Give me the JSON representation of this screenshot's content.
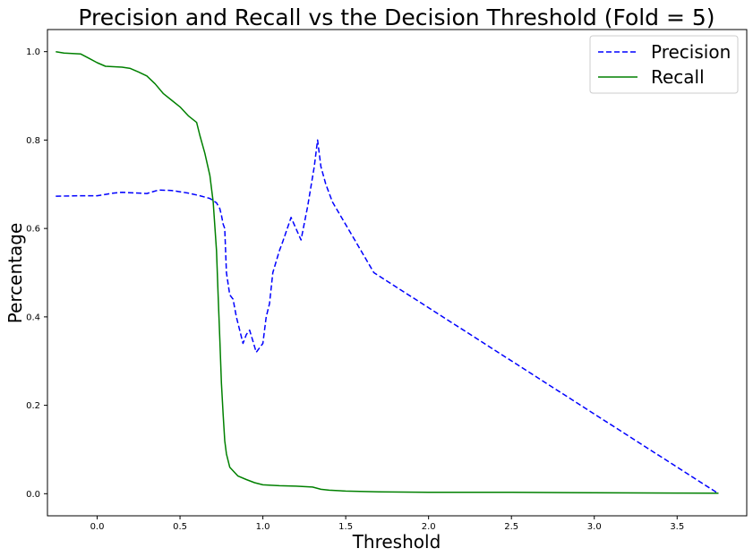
{
  "chart_data": {
    "type": "line",
    "title": "Precision and Recall vs the Decision Threshold (Fold = 5)",
    "xlabel": "Threshold",
    "ylabel": "Percentage",
    "xlim": [
      -0.3,
      3.92
    ],
    "ylim": [
      -0.05,
      1.05
    ],
    "xticks": [
      0.0,
      0.5,
      1.0,
      1.5,
      2.0,
      2.5,
      3.0,
      3.5
    ],
    "xtick_labels": [
      "0.0",
      "0.5",
      "1.0",
      "1.5",
      "2.0",
      "2.5",
      "3.0",
      "3.5"
    ],
    "yticks": [
      0.0,
      0.2,
      0.4,
      0.6,
      0.8,
      1.0
    ],
    "ytick_labels": [
      "0.0",
      "0.2",
      "0.4",
      "0.6",
      "0.8",
      "1.0"
    ],
    "grid": false,
    "legend_position": "top-right",
    "series": [
      {
        "name": "Precision",
        "color": "#0000ff",
        "style": "dashed",
        "x": [
          -0.25,
          -0.1,
          0.0,
          0.1,
          0.15,
          0.2,
          0.3,
          0.37,
          0.45,
          0.55,
          0.62,
          0.68,
          0.72,
          0.74,
          0.75,
          0.76,
          0.77,
          0.78,
          0.8,
          0.82,
          0.84,
          0.86,
          0.88,
          0.9,
          0.92,
          0.94,
          0.96,
          0.98,
          1.0,
          1.02,
          1.04,
          1.06,
          1.1,
          1.12,
          1.17,
          1.23,
          1.27,
          1.31,
          1.33,
          1.35,
          1.38,
          1.42,
          1.67,
          3.75
        ],
        "y": [
          0.673,
          0.674,
          0.674,
          0.68,
          0.682,
          0.681,
          0.679,
          0.687,
          0.686,
          0.68,
          0.674,
          0.668,
          0.658,
          0.645,
          0.63,
          0.61,
          0.6,
          0.5,
          0.45,
          0.44,
          0.4,
          0.37,
          0.34,
          0.36,
          0.37,
          0.345,
          0.32,
          0.33,
          0.34,
          0.4,
          0.43,
          0.5,
          0.55,
          0.57,
          0.625,
          0.574,
          0.65,
          0.74,
          0.8,
          0.74,
          0.7,
          0.66,
          0.5,
          0.0
        ]
      },
      {
        "name": "Recall",
        "color": "#008000",
        "style": "solid",
        "x": [
          -0.25,
          -0.2,
          -0.1,
          -0.05,
          0.0,
          0.05,
          0.1,
          0.15,
          0.2,
          0.25,
          0.3,
          0.35,
          0.4,
          0.45,
          0.5,
          0.55,
          0.6,
          0.62,
          0.65,
          0.68,
          0.7,
          0.72,
          0.73,
          0.74,
          0.75,
          0.76,
          0.77,
          0.78,
          0.8,
          0.85,
          0.9,
          0.95,
          1.0,
          1.05,
          1.1,
          1.2,
          1.3,
          1.35,
          1.4,
          1.5,
          1.7,
          2.0,
          2.5,
          3.0,
          3.5,
          3.75
        ],
        "y": [
          1.0,
          0.997,
          0.995,
          0.985,
          0.975,
          0.967,
          0.966,
          0.965,
          0.962,
          0.954,
          0.945,
          0.927,
          0.905,
          0.89,
          0.875,
          0.855,
          0.84,
          0.81,
          0.77,
          0.72,
          0.66,
          0.55,
          0.45,
          0.35,
          0.25,
          0.18,
          0.12,
          0.09,
          0.06,
          0.04,
          0.032,
          0.025,
          0.02,
          0.019,
          0.018,
          0.017,
          0.015,
          0.01,
          0.008,
          0.006,
          0.004,
          0.003,
          0.003,
          0.002,
          0.0015,
          0.001
        ]
      }
    ]
  }
}
